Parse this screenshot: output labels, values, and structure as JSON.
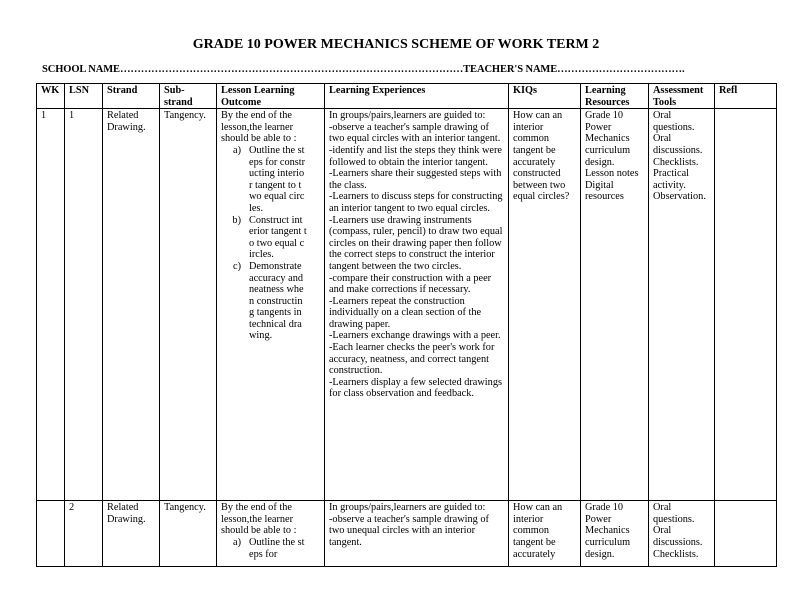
{
  "title": "GRADE 10 POWER MECHANICS SCHEME OF WORK TERM 2",
  "school_line": "SCHOOL NAME………………………………………………………………………………………TEACHER'S NAME……………………………….",
  "headers": [
    "WK",
    "LSN",
    "Strand",
    "Sub-strand",
    "Lesson Learning Outcome",
    "Learning Experiences",
    "KIQs",
    "Learning Resources",
    "Assessment Tools",
    "Refl"
  ],
  "rows": [
    {
      "wk": "1",
      "lsn": "1",
      "strand": "Related Drawing.",
      "substrand": "Tangency.",
      "outcome_intro": "By the end of the lesson,the learner should be able to :",
      "outcomes": [
        {
          "label": "a)",
          "text": "Outline the steps for constructing interior tangent to two equal circles."
        },
        {
          "label": "b)",
          "text": "Construct interior tangent to two equal circles."
        },
        {
          "label": "c)",
          "text": "Demonstrate accuracy and neatness when constructing tangents in technical drawing."
        }
      ],
      "experiences": [
        "In groups/pairs,learners are guided to:",
        "-observe a teacher's sample drawing of two equal circles with an interior tangent.",
        "-identify and list the steps they think were followed to obtain the interior tangent.",
        "-Learners share their suggested steps with the class.",
        "-Learners to discuss steps for constructing an interior tangent to two equal circles.",
        "-Learners use drawing instruments (compass, ruler, pencil) to draw two equal circles on their drawing paper then follow the correct steps to construct the interior tangent between the two circles.",
        "-compare their construction with a peer and make corrections if necessary.",
        "-Learners repeat the construction individually on a clean section of the drawing paper.",
        "-Learners exchange drawings with a peer.",
        "-Each learner checks the peer's work for accuracy, neatness, and correct tangent construction.",
        "-Learners display a few selected drawings for class observation and feedback."
      ],
      "kiqs": "How can an interior common tangent be accurately constructed between two equal circles?",
      "resources": [
        "Grade 10 Power Mechanics curriculum design.",
        "Lesson notes",
        "Digital resources"
      ],
      "assessment": [
        "Oral questions.",
        "Oral discussions.",
        "Checklists.",
        "Practical activity.",
        "Observation."
      ],
      "refl": ""
    },
    {
      "wk": "",
      "lsn": "2",
      "strand": "Related Drawing.",
      "substrand": "Tangency.",
      "outcome_intro": "By the end of the lesson,the learner should be able to :",
      "outcomes": [
        {
          "label": "a)",
          "text": "Outline the steps for"
        }
      ],
      "experiences": [
        "In groups/pairs,learners are guided to:",
        "-observe a teacher's sample drawing of two unequal circles with an interior tangent."
      ],
      "kiqs": "How can an interior common tangent be accurately",
      "resources": [
        "Grade 10 Power Mechanics curriculum design."
      ],
      "assessment": [
        "Oral questions.",
        "Oral discussions.",
        "Checklists."
      ],
      "refl": ""
    }
  ]
}
